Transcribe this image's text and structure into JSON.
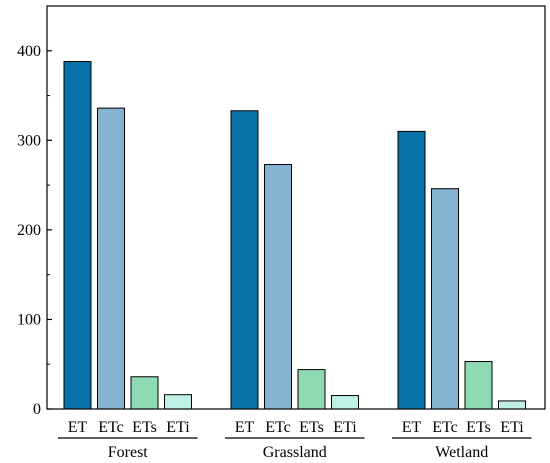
{
  "chart_data": {
    "type": "bar",
    "groups": [
      "Forest",
      "Grassland",
      "Wetland"
    ],
    "categories": [
      "ET",
      "ETc",
      "ETs",
      "ETi"
    ],
    "values": [
      [
        388,
        336,
        36,
        16
      ],
      [
        333,
        273,
        44,
        15
      ],
      [
        310,
        246,
        53,
        9
      ]
    ],
    "colors": [
      "#0872a8",
      "#85b3d0",
      "#8fd9b3",
      "#bff0e6"
    ],
    "ylim": [
      0,
      450
    ],
    "yticks": [
      0,
      100,
      200,
      300,
      400
    ],
    "title": "",
    "xlabel": "",
    "ylabel": ""
  }
}
